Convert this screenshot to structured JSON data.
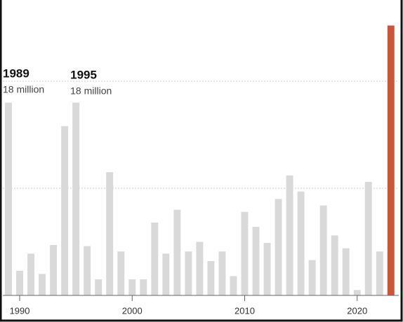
{
  "chart_data": {
    "type": "bar",
    "x": [
      1989,
      1990,
      1991,
      1992,
      1993,
      1994,
      1995,
      1996,
      1997,
      1998,
      1999,
      2000,
      2001,
      2002,
      2003,
      2004,
      2005,
      2006,
      2007,
      2008,
      2009,
      2010,
      2011,
      2012,
      2013,
      2014,
      2015,
      2016,
      2017,
      2018,
      2019,
      2020,
      2021,
      2022,
      2023
    ],
    "values": [
      18,
      2.3,
      3.9,
      2.0,
      4.7,
      15.8,
      18,
      4.6,
      1.5,
      11.5,
      4.1,
      1.5,
      1.5,
      6.8,
      3.9,
      8.0,
      4.1,
      5.0,
      3.2,
      4.1,
      1.8,
      7.8,
      6.4,
      4.9,
      9.0,
      11.2,
      9.7,
      3.3,
      8.4,
      5.6,
      4.4,
      0.5,
      10.6,
      4.1,
      25.2
    ],
    "colors": [
      "#d9d9d9",
      "#d9d9d9",
      "#d9d9d9",
      "#d9d9d9",
      "#d9d9d9",
      "#d9d9d9",
      "#d9d9d9",
      "#d9d9d9",
      "#d9d9d9",
      "#d9d9d9",
      "#d9d9d9",
      "#d9d9d9",
      "#d9d9d9",
      "#d9d9d9",
      "#d9d9d9",
      "#d9d9d9",
      "#d9d9d9",
      "#d9d9d9",
      "#d9d9d9",
      "#d9d9d9",
      "#d9d9d9",
      "#d9d9d9",
      "#d9d9d9",
      "#d9d9d9",
      "#d9d9d9",
      "#d9d9d9",
      "#d9d9d9",
      "#d9d9d9",
      "#d9d9d9",
      "#d9d9d9",
      "#d9d9d9",
      "#d9d9d9",
      "#d9d9d9",
      "#d9d9d9",
      "#c9553a"
    ],
    "xlim": [
      1988.5,
      2023.7
    ],
    "xticks": [
      1990,
      2000,
      2010,
      2020
    ],
    "ylim": [
      0,
      27.5
    ],
    "yticks": [
      10,
      20
    ],
    "grid": true,
    "annotations": [
      {
        "title": "1989",
        "note": "18 million"
      },
      {
        "title": "1995",
        "note": "18 million"
      }
    ]
  }
}
